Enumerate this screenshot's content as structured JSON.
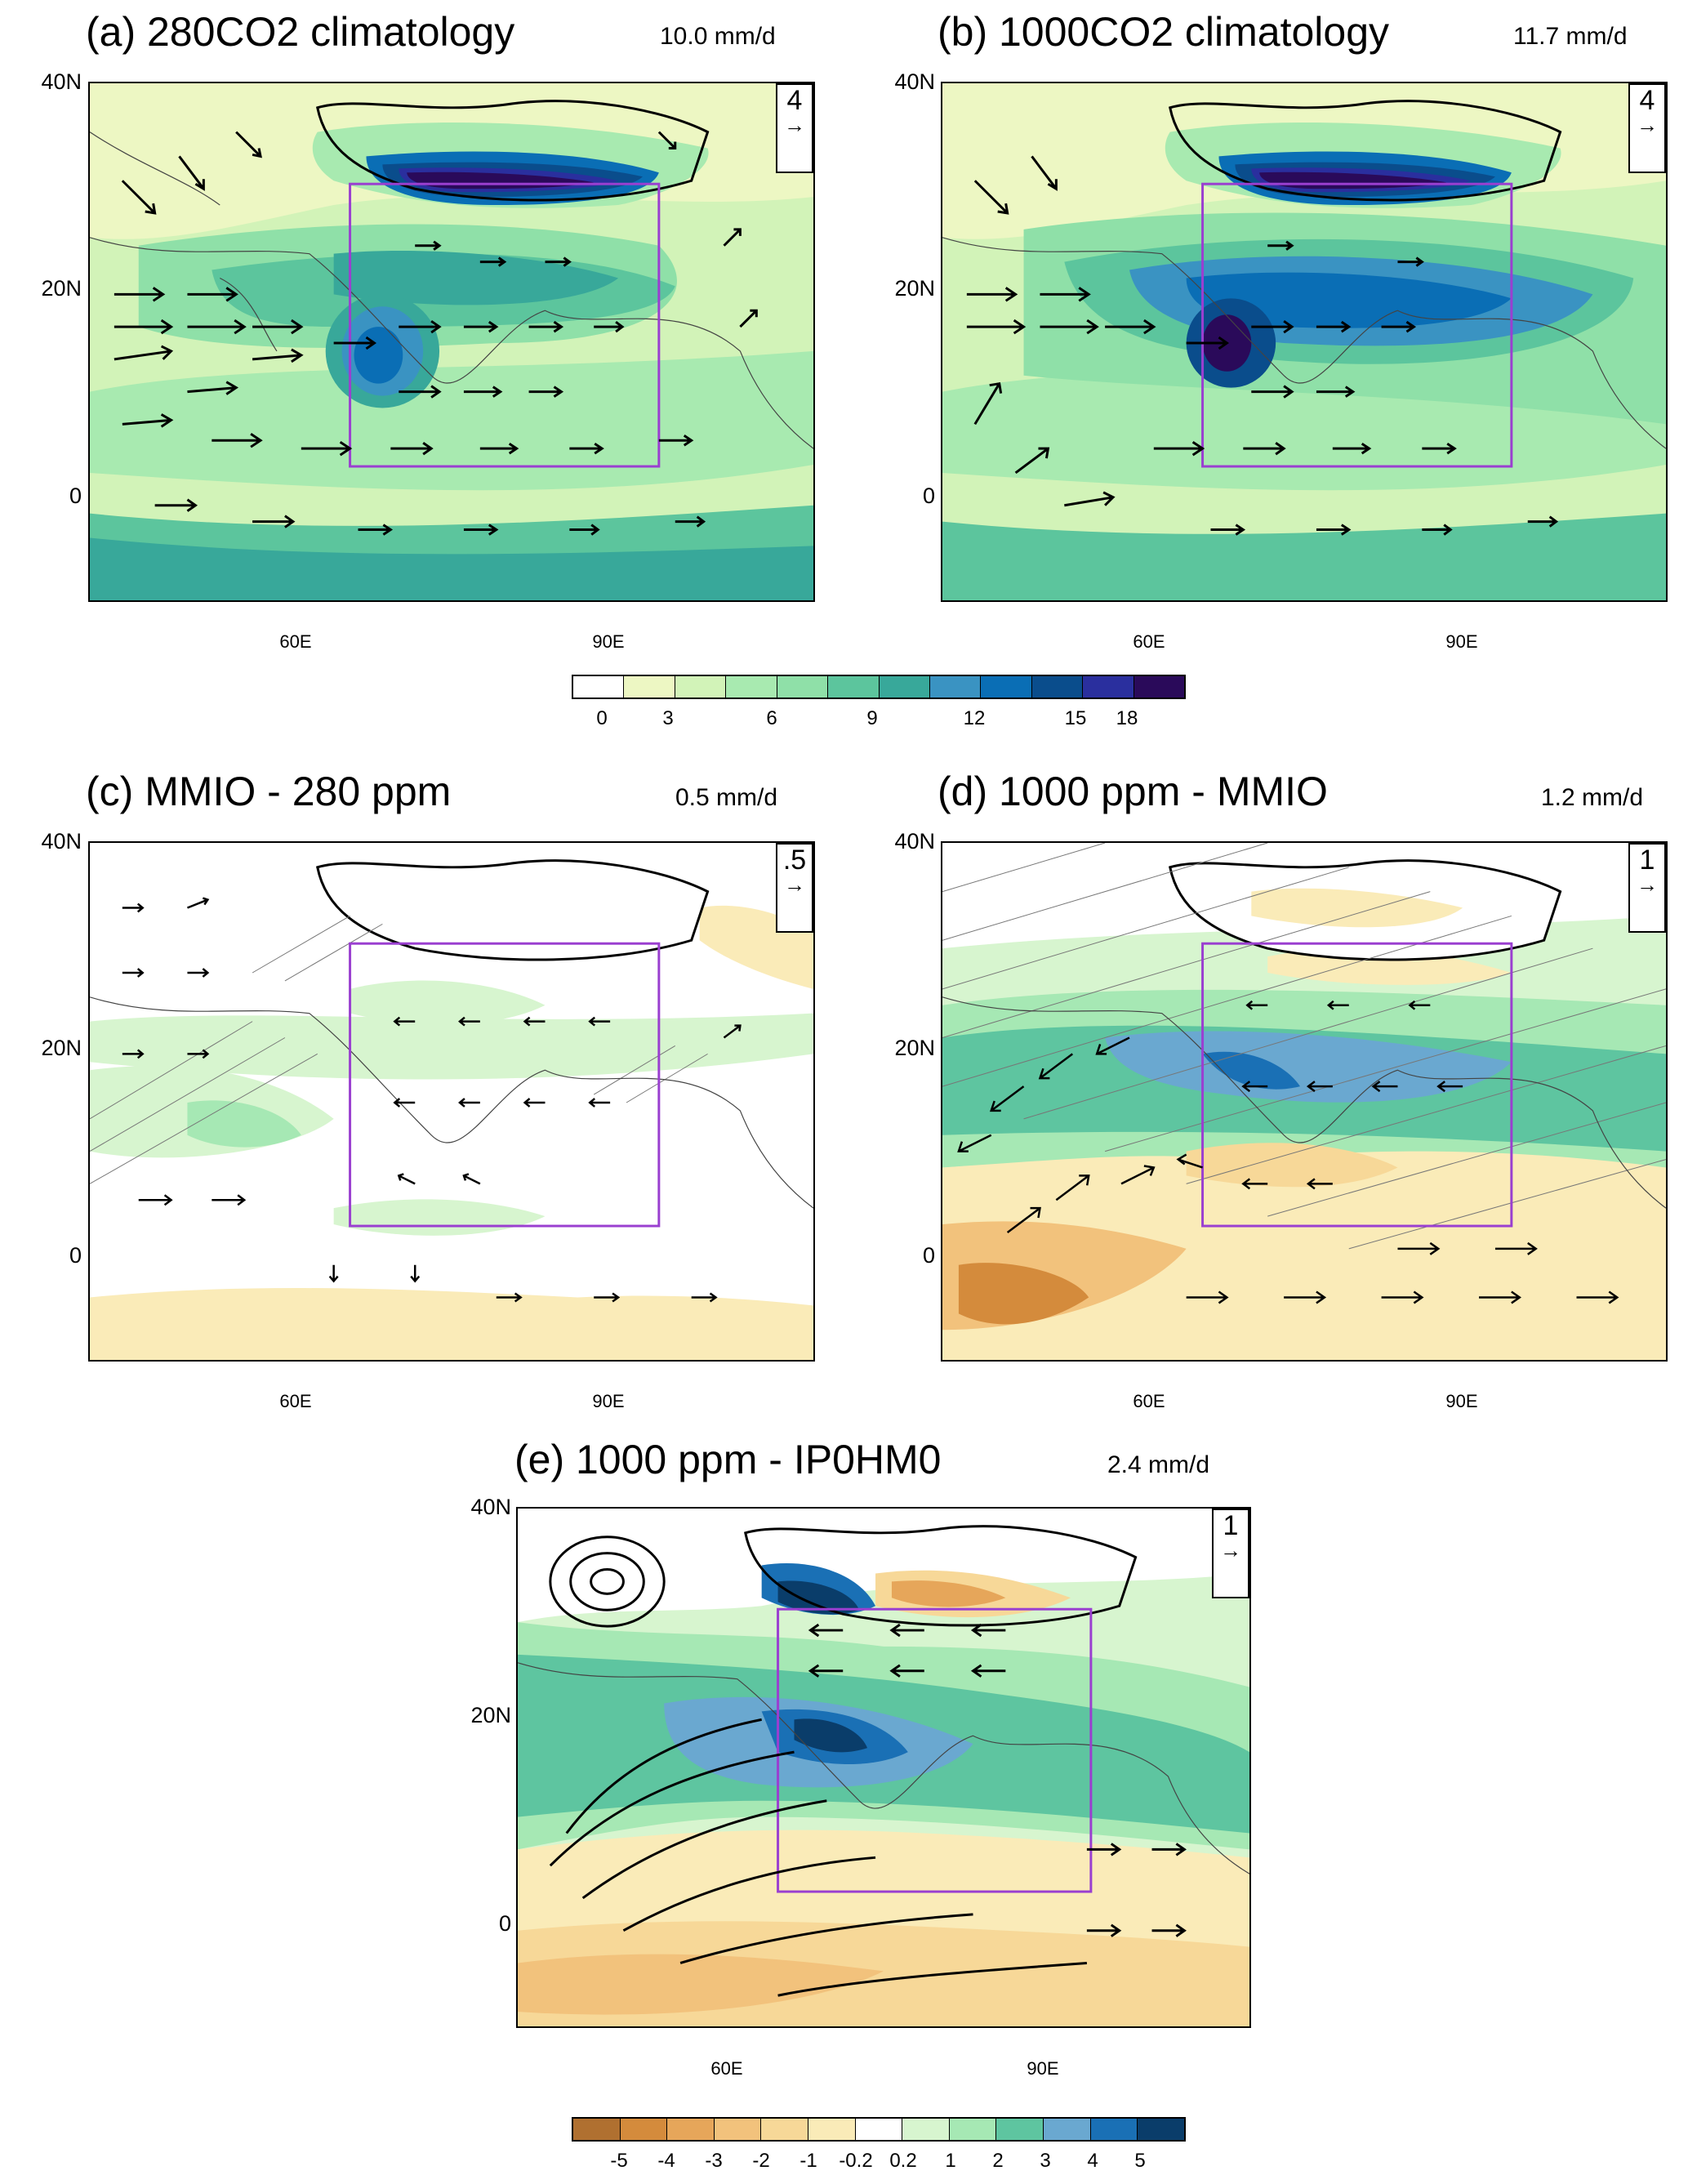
{
  "panels": [
    {
      "title": "(a) 280CO2 climatology",
      "mean": "10.0 mm/d",
      "ref": "4"
    },
    {
      "title": "(b) 1000CO2 climatology",
      "mean": "11.7 mm/d",
      "ref": "4"
    },
    {
      "title": "(c) MMIO - 280 ppm",
      "mean": "0.5 mm/d",
      "ref": ".5"
    },
    {
      "title": "(d) 1000 ppm - MMIO",
      "mean": "1.2 mm/d",
      "ref": "1"
    },
    {
      "title": "(e) 1000 ppm - IP0HM0",
      "mean": "2.4 mm/d",
      "ref": "1"
    }
  ],
  "axes": {
    "y_ticks": [
      "40N",
      "20N",
      "0"
    ],
    "x_ticks": [
      "60E",
      "90E"
    ],
    "lon_range": [
      40,
      110
    ],
    "lat_range": [
      -10,
      40
    ],
    "box": {
      "lon": [
        65,
        95
      ],
      "lat": [
        7,
        30
      ]
    }
  },
  "colorbar_climatology": {
    "labels": [
      "0",
      "3",
      "6",
      "9",
      "12",
      "15",
      "18"
    ],
    "colors": [
      "#ffffff",
      "#edf7c3",
      "#d2f3b8",
      "#a8eab0",
      "#8fe0a8",
      "#5cc59d",
      "#38a89a",
      "#3a93c2",
      "#0a6eb5",
      "#0a4d8c",
      "#2a2f9e",
      "#2a0a5a"
    ]
  },
  "colorbar_difference": {
    "labels": [
      "-5",
      "-4",
      "-3",
      "-2",
      "-1",
      "-0.2",
      "0.2",
      "1",
      "2",
      "3",
      "4",
      "5"
    ],
    "colors": [
      "#b07030",
      "#d48b3c",
      "#e6a65a",
      "#f2c27c",
      "#f7d898",
      "#faebb8",
      "#ffffff",
      "#d7f5cf",
      "#a6e8b4",
      "#5ec5a0",
      "#6aa8d0",
      "#1a70b5",
      "#0a3d6a"
    ]
  }
}
